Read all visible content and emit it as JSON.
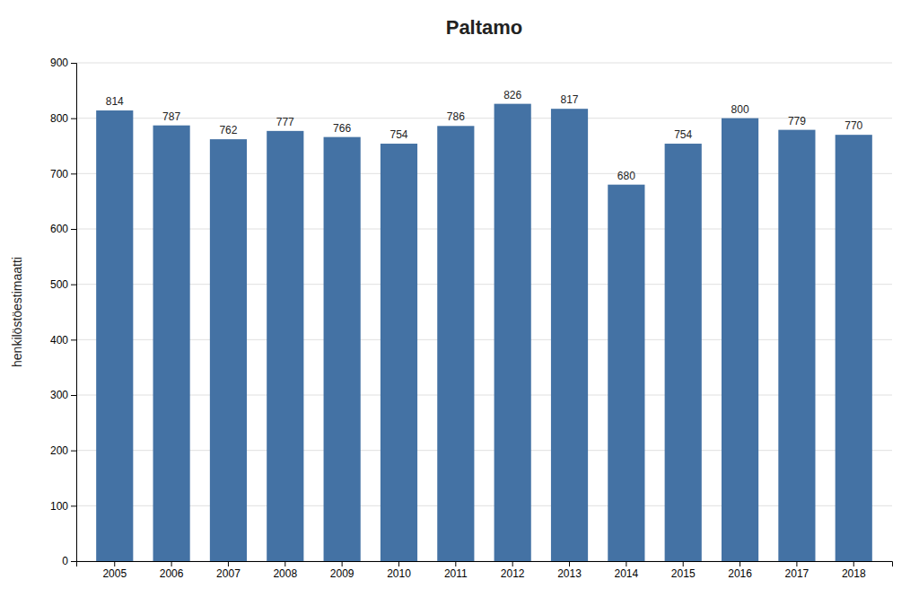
{
  "chart_data": {
    "type": "bar",
    "title": "Paltamo",
    "ylabel": "henkilöstöestimaatti",
    "categories": [
      "2005",
      "2006",
      "2007",
      "2008",
      "2009",
      "2010",
      "2011",
      "2012",
      "2013",
      "2014",
      "2015",
      "2016",
      "2017",
      "2018"
    ],
    "values": [
      814,
      787,
      762,
      777,
      766,
      754,
      786,
      826,
      817,
      680,
      754,
      800,
      779,
      770
    ],
    "color": "#4472a4",
    "ylim": [
      0,
      900
    ],
    "yticks": [
      0,
      100,
      200,
      300,
      400,
      500,
      600,
      700,
      800,
      900
    ],
    "grid": true,
    "data_labels": true
  }
}
